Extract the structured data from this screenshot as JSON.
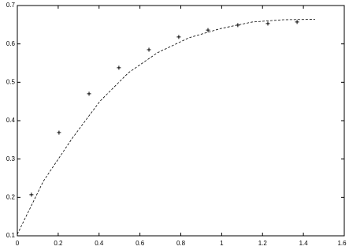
{
  "chart_data": [
    {
      "type": "scatter",
      "marker": "+",
      "color": "#000000",
      "x": [
        0.069,
        0.204,
        0.351,
        0.497,
        0.644,
        0.79,
        0.933,
        1.079,
        1.226,
        1.369
      ],
      "values": [
        0.207,
        0.369,
        0.47,
        0.538,
        0.585,
        0.618,
        0.636,
        0.649,
        0.653,
        0.657
      ],
      "xlim": [
        0,
        1.6
      ],
      "ylim": [
        0.1,
        0.7
      ],
      "xticks": [
        0,
        0.2,
        0.4,
        0.6,
        0.8,
        1,
        1.2,
        1.4,
        1.6
      ],
      "yticks": [
        0.1,
        0.2,
        0.3,
        0.4,
        0.5,
        0.6,
        0.7
      ]
    },
    {
      "type": "line",
      "dash": true,
      "color": "#000000",
      "x": [
        0,
        0.127,
        0.27,
        0.405,
        0.544,
        0.686,
        0.84,
        0.995,
        1.149,
        1.303,
        1.457
      ],
      "values": [
        0.104,
        0.242,
        0.355,
        0.451,
        0.525,
        0.577,
        0.616,
        0.64,
        0.657,
        0.663,
        0.664
      ],
      "xlim": [
        0,
        1.6
      ],
      "ylim": [
        0.1,
        0.7
      ]
    }
  ]
}
